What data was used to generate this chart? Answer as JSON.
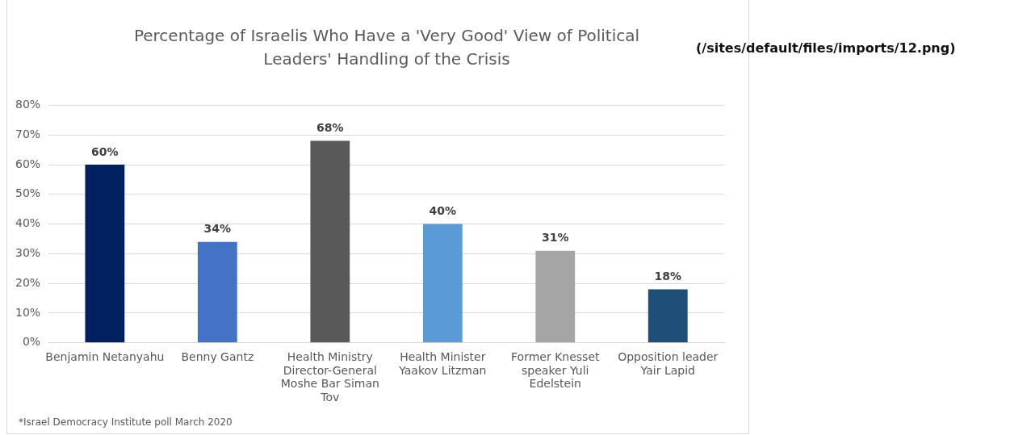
{
  "chart_data": {
    "type": "bar",
    "title": "Percentage of Israelis Who Have a 'Very Good' View of Political Leaders' Handling of the Crisis",
    "categories": [
      "Benjamin Netanyahu",
      "Benny Gantz",
      "Health Ministry Director-General Moshe Bar Siman Tov",
      "Health Minister Yaakov Litzman",
      "Former Knesset speaker Yuli Edelstein",
      "Opposition leader Yair Lapid"
    ],
    "values": [
      60,
      34,
      68,
      40,
      31,
      18
    ],
    "colors": [
      "#002060",
      "#4472c4",
      "#595959",
      "#5b9bd5",
      "#a5a5a5",
      "#1f4e79"
    ],
    "value_labels": [
      "60%",
      "34%",
      "68%",
      "40%",
      "31%",
      "18%"
    ],
    "ylim": [
      0,
      80
    ],
    "yticks": [
      {
        "value": 0,
        "label": "0%"
      },
      {
        "value": 10,
        "label": "10%"
      },
      {
        "value": 20,
        "label": "20%"
      },
      {
        "value": 30,
        "label": "30%"
      },
      {
        "value": 40,
        "label": "40%"
      },
      {
        "value": 50,
        "label": "50%"
      },
      {
        "value": 60,
        "label": "60%"
      },
      {
        "value": 70,
        "label": "70%"
      },
      {
        "value": 80,
        "label": "80%"
      }
    ],
    "grid": "y",
    "legend": false,
    "annotations": [
      "*Israel Democracy Institute poll March 2020",
      "(/sites/default/files/imports/12.png)"
    ]
  }
}
